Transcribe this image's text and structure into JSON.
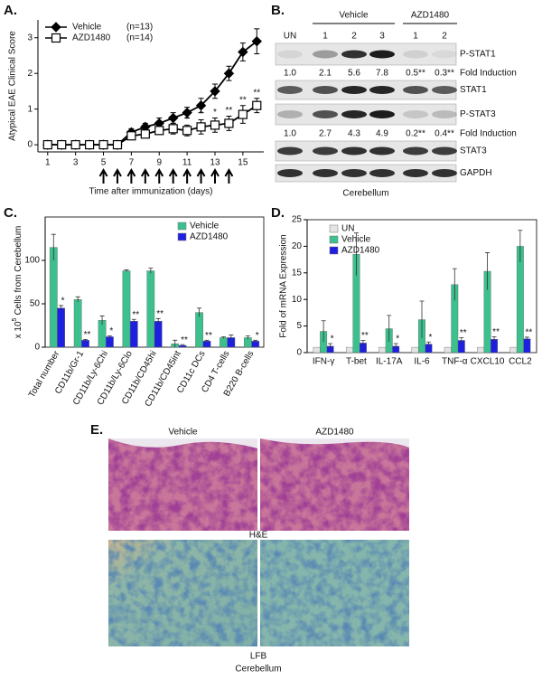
{
  "figure_labels": [
    "A.",
    "B.",
    "C.",
    "D.",
    "E."
  ],
  "chart_data": [
    {
      "type": "line",
      "ylabel": "Atypical EAE Clinical Score",
      "xlabel": "Time after immunization (days)",
      "x": [
        1,
        2,
        3,
        4,
        5,
        6,
        7,
        8,
        9,
        10,
        11,
        12,
        13,
        14,
        15,
        16
      ],
      "xlim": [
        0.3,
        16.5
      ],
      "xticks": [
        1,
        3,
        5,
        7,
        9,
        11,
        13,
        15
      ],
      "ylim": [
        -0.2,
        3.5
      ],
      "yticks": [
        0,
        1,
        2,
        3
      ],
      "legend": "upper left",
      "series": [
        {
          "name": "Vehicle",
          "n": "(n=13)",
          "color": "#000000",
          "marker": "diamond",
          "filled": true,
          "values": [
            0,
            0,
            0,
            0,
            0,
            0,
            0.35,
            0.5,
            0.6,
            0.75,
            0.9,
            1.1,
            1.5,
            2.0,
            2.6,
            2.9
          ],
          "errors": [
            0,
            0,
            0,
            0,
            0,
            0,
            0.1,
            0.1,
            0.15,
            0.15,
            0.15,
            0.2,
            0.2,
            0.2,
            0.25,
            0.35
          ]
        },
        {
          "name": "AZD1480",
          "n": "(n=14)",
          "color": "#000000",
          "marker": "square",
          "filled": false,
          "values": [
            0,
            0,
            0,
            0,
            0,
            0,
            0.25,
            0.3,
            0.4,
            0.45,
            0.4,
            0.5,
            0.55,
            0.6,
            0.85,
            1.1
          ],
          "errors": [
            0,
            0,
            0,
            0,
            0,
            0,
            0.1,
            0.1,
            0.1,
            0.15,
            0.15,
            0.2,
            0.2,
            0.2,
            0.25,
            0.2
          ],
          "annotations": [
            null,
            null,
            null,
            null,
            null,
            null,
            null,
            null,
            null,
            null,
            "*",
            "*",
            "*",
            "**",
            "**",
            "**"
          ]
        }
      ],
      "arrow_days": [
        5,
        6,
        7,
        8,
        9,
        10,
        11,
        12,
        13,
        14
      ]
    },
    {
      "type": "bar",
      "ylabel": {
        "prefix": "x 10",
        "sup": "5",
        "rest": "Cells from Cerebellum"
      },
      "categories": [
        "Total number",
        "CD11b/Gr-1",
        "CD11b/Ly-6Chi",
        "CD11b/Ly-6Clo",
        "CD11b/CD45hi",
        "CD11b/CD45int",
        "CD11c DCs",
        "CD4 T-cells",
        "B220 B-cells"
      ],
      "ylim": [
        0,
        150
      ],
      "yticks": [
        0,
        50,
        100
      ],
      "legend": "upper right",
      "series": [
        {
          "name": "Vehicle",
          "color": "#3cc08e",
          "values": [
            115,
            55,
            31,
            88,
            88,
            4,
            40,
            11,
            11
          ],
          "errors": [
            15,
            3,
            5,
            1,
            3,
            4,
            5,
            1,
            2
          ]
        },
        {
          "name": "AZD1480",
          "color": "#1f1fe0",
          "values": [
            45,
            8,
            12,
            30,
            30,
            2,
            7,
            11,
            7
          ],
          "errors": [
            3,
            1,
            1,
            2,
            3,
            1,
            1,
            3,
            1
          ],
          "annotations": [
            "*",
            "**",
            "*",
            "**",
            "**",
            "**",
            "**",
            null,
            "*"
          ]
        }
      ]
    },
    {
      "type": "bar",
      "ylabel": "Fold of mRNA Expression",
      "categories": [
        "IFN-γ",
        "T-bet",
        "IL-17A",
        "IL-6",
        "TNF-α",
        "CXCL10",
        "CCL2"
      ],
      "ylim": [
        0,
        25
      ],
      "yticks": [
        0,
        5,
        10,
        15,
        20,
        25
      ],
      "legend": "upper left",
      "series": [
        {
          "name": "UN",
          "color": "#e4e4e4",
          "values": [
            1,
            1,
            1,
            1,
            1,
            1,
            1
          ]
        },
        {
          "name": "Vehicle",
          "color": "#3cc08e",
          "values": [
            4,
            18.5,
            4.5,
            6.2,
            12.8,
            15.3,
            20
          ],
          "errors": [
            2,
            4,
            2.5,
            3.5,
            3,
            3.5,
            3
          ]
        },
        {
          "name": "AZD1480",
          "color": "#1f1fe0",
          "values": [
            1.2,
            1.8,
            1.2,
            1.6,
            2.3,
            2.5,
            2.6
          ],
          "errors": [
            0.5,
            0.5,
            0.5,
            0.4,
            0.5,
            0.5,
            0.3
          ],
          "annotations": [
            "*",
            "**",
            "*",
            "*",
            "**",
            "**",
            "**"
          ]
        }
      ]
    }
  ],
  "blot": {
    "lanes": [
      "UN",
      "1",
      "2",
      "3",
      "1",
      "2"
    ],
    "groups": [
      "Vehicle",
      "AZD1480"
    ],
    "rows": [
      {
        "kind": "band",
        "label": "P-STAT1"
      },
      {
        "kind": "fold",
        "label": "Fold Induction",
        "values": [
          "1.0",
          "2.1",
          "5.6",
          "7.8",
          "0.5**",
          "0.3**"
        ]
      },
      {
        "kind": "band",
        "label": "STAT1"
      },
      {
        "kind": "band",
        "label": "P-STAT3"
      },
      {
        "kind": "fold",
        "label": "Fold Induction",
        "values": [
          "1.0",
          "2.7",
          "4.3",
          "4.9",
          "0.2**",
          "0.4**"
        ]
      },
      {
        "kind": "band",
        "label": "STAT3"
      },
      {
        "kind": "band",
        "label": "GAPDH"
      }
    ],
    "tissue": "Cerebellum"
  },
  "histology": {
    "columns": [
      "Vehicle",
      "AZD1480"
    ],
    "stains": [
      "H&E",
      "LFB"
    ],
    "tissue": "Cerebellum"
  }
}
